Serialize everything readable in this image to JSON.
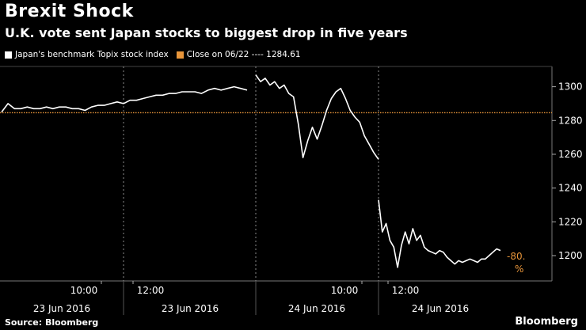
{
  "header": {
    "title": "Brexit Shock",
    "subtitle": "U.K. vote sent Japan stocks to biggest drop in five years"
  },
  "legend": {
    "series_label": "Japan's benchmark Topix stock index",
    "close_label": "Close on 06/22 ---- 1284.61",
    "series_color": "#ffffff",
    "close_color": "#e8953a"
  },
  "footer": {
    "source": "Source: Bloomberg",
    "brand": "Bloomberg"
  },
  "chart_data": {
    "type": "line",
    "ylim": [
      1185,
      1312
    ],
    "yticks": [
      1200,
      1220,
      1240,
      1260,
      1280,
      1300
    ],
    "reference_line": {
      "name": "Close on 06/22",
      "value": 1284.61
    },
    "session_labels": [
      "10:00",
      "12:00",
      "10:00",
      "12:00"
    ],
    "date_labels": [
      "23 Jun 2016",
      "23 Jun 2016",
      "24 Jun 2016",
      "24 Jun 2016"
    ],
    "annotation": {
      "change": "-80.",
      "pct": "%"
    },
    "series": [
      {
        "session": 1,
        "values": [
          1285,
          1290,
          1287,
          1287,
          1288,
          1287,
          1287,
          1288,
          1287,
          1288,
          1288,
          1287,
          1287,
          1286,
          1288,
          1289,
          1289,
          1290,
          1291,
          1290
        ]
      },
      {
        "session": 2,
        "values": [
          1290,
          1292,
          1292,
          1293,
          1294,
          1295,
          1295,
          1296,
          1296,
          1297,
          1297,
          1297,
          1296,
          1298,
          1299,
          1298,
          1299,
          1300,
          1299,
          1298
        ]
      },
      {
        "session": 3,
        "values": [
          1307,
          1303,
          1305,
          1301,
          1303,
          1299,
          1301,
          1296,
          1294,
          1278,
          1258,
          1268,
          1276,
          1269,
          1277,
          1286,
          1293,
          1297,
          1299,
          1293,
          1286,
          1282,
          1279,
          1271,
          1266,
          1261,
          1257
        ]
      },
      {
        "session": 4,
        "values": [
          1233,
          1214,
          1219,
          1209,
          1205,
          1193,
          1206,
          1214,
          1207,
          1216,
          1209,
          1212,
          1205,
          1203,
          1202,
          1201,
          1203,
          1202,
          1199,
          1197,
          1195,
          1197,
          1196,
          1197,
          1198,
          1197,
          1196,
          1198,
          1198,
          1200,
          1202,
          1204,
          1203
        ]
      }
    ]
  }
}
